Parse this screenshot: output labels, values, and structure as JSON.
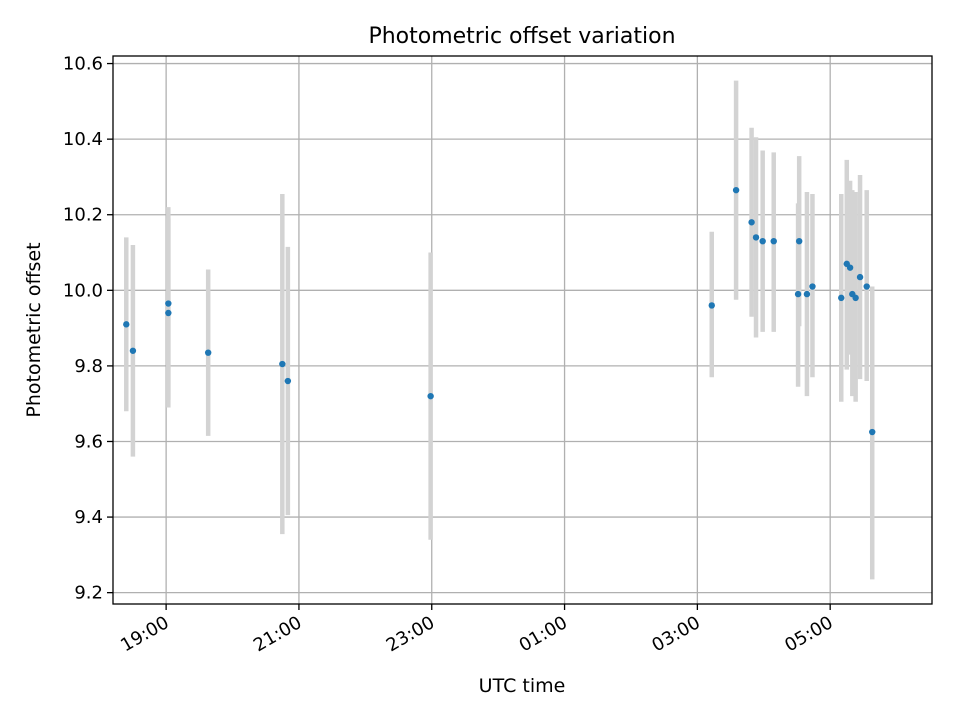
{
  "chart_data": {
    "type": "scatter",
    "title": "Photometric offset variation",
    "xlabel": "UTC time",
    "ylabel": "Photometric offset",
    "x_axis_type": "time",
    "x_range": [
      "18:12",
      "06:32"
    ],
    "ylim": [
      9.17,
      10.62
    ],
    "grid": true,
    "x_ticks": [
      "19:00",
      "21:00",
      "23:00",
      "01:00",
      "03:00",
      "05:00"
    ],
    "y_ticks": [
      9.2,
      9.4,
      9.6,
      9.8,
      10.0,
      10.2,
      10.4,
      10.6
    ],
    "y_tick_labels": [
      "9.2",
      "9.4",
      "9.6",
      "9.8",
      "10.0",
      "10.2",
      "10.4",
      "10.6"
    ],
    "colors": {
      "marker": "#1f77b4",
      "errorbar": "#d3d3d3",
      "grid": "#b0b0b0"
    },
    "series": [
      {
        "points": [
          {
            "x": "18:24",
            "y": 9.91,
            "ylow": 9.68,
            "yhigh": 10.14
          },
          {
            "x": "18:30",
            "y": 9.84,
            "ylow": 9.56,
            "yhigh": 10.12
          },
          {
            "x": "19:02",
            "y": 9.965,
            "ylow": 9.71,
            "yhigh": 10.22
          },
          {
            "x": "19:02",
            "y": 9.94,
            "ylow": 9.69,
            "yhigh": 10.19
          },
          {
            "x": "19:38",
            "y": 9.835,
            "ylow": 9.615,
            "yhigh": 10.055
          },
          {
            "x": "20:45",
            "y": 9.805,
            "ylow": 9.355,
            "yhigh": 10.255
          },
          {
            "x": "20:50",
            "y": 9.76,
            "ylow": 9.405,
            "yhigh": 10.115
          },
          {
            "x": "22:59",
            "y": 9.72,
            "ylow": 9.34,
            "yhigh": 10.1
          },
          {
            "x": "03:13",
            "y": 9.96,
            "ylow": 9.77,
            "yhigh": 10.155
          },
          {
            "x": "03:35",
            "y": 10.265,
            "ylow": 9.975,
            "yhigh": 10.555
          },
          {
            "x": "03:49",
            "y": 10.18,
            "ylow": 9.93,
            "yhigh": 10.43
          },
          {
            "x": "03:53",
            "y": 10.14,
            "ylow": 9.875,
            "yhigh": 10.405
          },
          {
            "x": "03:59",
            "y": 10.13,
            "ylow": 9.89,
            "yhigh": 10.37
          },
          {
            "x": "04:09",
            "y": 10.13,
            "ylow": 9.89,
            "yhigh": 10.365
          },
          {
            "x": "04:31",
            "y": 9.99,
            "ylow": 9.745,
            "yhigh": 10.23
          },
          {
            "x": "04:32",
            "y": 10.13,
            "ylow": 9.905,
            "yhigh": 10.355
          },
          {
            "x": "04:39",
            "y": 9.99,
            "ylow": 9.72,
            "yhigh": 10.26
          },
          {
            "x": "04:44",
            "y": 10.01,
            "ylow": 9.77,
            "yhigh": 10.255
          },
          {
            "x": "05:10",
            "y": 9.98,
            "ylow": 9.705,
            "yhigh": 10.255
          },
          {
            "x": "05:15",
            "y": 10.07,
            "ylow": 9.79,
            "yhigh": 10.345
          },
          {
            "x": "05:18",
            "y": 10.06,
            "ylow": 9.83,
            "yhigh": 10.29
          },
          {
            "x": "05:20",
            "y": 9.99,
            "ylow": 9.72,
            "yhigh": 10.265
          },
          {
            "x": "05:23",
            "y": 9.98,
            "ylow": 9.705,
            "yhigh": 10.26
          },
          {
            "x": "05:27",
            "y": 10.035,
            "ylow": 9.765,
            "yhigh": 10.305
          },
          {
            "x": "05:33",
            "y": 10.01,
            "ylow": 9.76,
            "yhigh": 10.265
          },
          {
            "x": "05:38",
            "y": 9.625,
            "ylow": 9.235,
            "yhigh": 10.01
          }
        ]
      }
    ]
  }
}
